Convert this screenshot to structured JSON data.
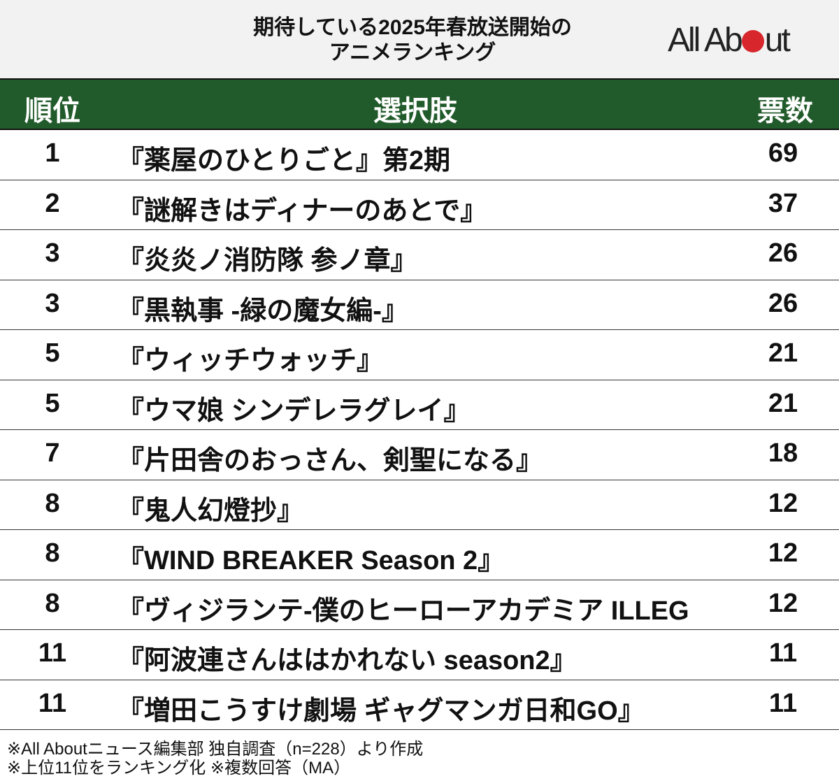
{
  "title": {
    "line1": "期待している2025年春放送開始の",
    "line2": "アニメランキング"
  },
  "logo": {
    "text_before": "All Ab",
    "text_after": "ut",
    "full": "All About",
    "dot_color": "#d7262c"
  },
  "header": {
    "rank": "順位",
    "choice": "選択肢",
    "votes": "票数",
    "color": "#225b2b"
  },
  "rows": [
    {
      "rank": "1",
      "name": "『薬屋のひとりごと』第2期",
      "votes": "69"
    },
    {
      "rank": "2",
      "name": "『謎解きはディナーのあとで』",
      "votes": "37"
    },
    {
      "rank": "3",
      "name": "『炎炎ノ消防隊 参ノ章』",
      "votes": "26"
    },
    {
      "rank": "3",
      "name": "『黒執事 -緑の魔女編-』",
      "votes": "26"
    },
    {
      "rank": "5",
      "name": "『ウィッチウォッチ』",
      "votes": "21"
    },
    {
      "rank": "5",
      "name": "『ウマ娘 シンデレラグレイ』",
      "votes": "21"
    },
    {
      "rank": "7",
      "name": "『片田舎のおっさん、剣聖になる』",
      "votes": "18"
    },
    {
      "rank": "8",
      "name": "『鬼人幻燈抄』",
      "votes": "12"
    },
    {
      "rank": "8",
      "name": "『WIND BREAKER Season 2』",
      "votes": "12"
    },
    {
      "rank": "8",
      "name": "『ヴィジランテ-僕のヒーローアカデミア ILLEG",
      "votes": "12"
    },
    {
      "rank": "11",
      "name": "『阿波連さんははかれない season2』",
      "votes": "11"
    },
    {
      "rank": "11",
      "name": "『増田こうすけ劇場 ギャグマンガ日和GO』",
      "votes": "11"
    }
  ],
  "notes": [
    "※All Aboutニュース編集部 独自調査（n=228）より作成",
    "※上位11位をランキング化 ※複数回答（MA）"
  ]
}
